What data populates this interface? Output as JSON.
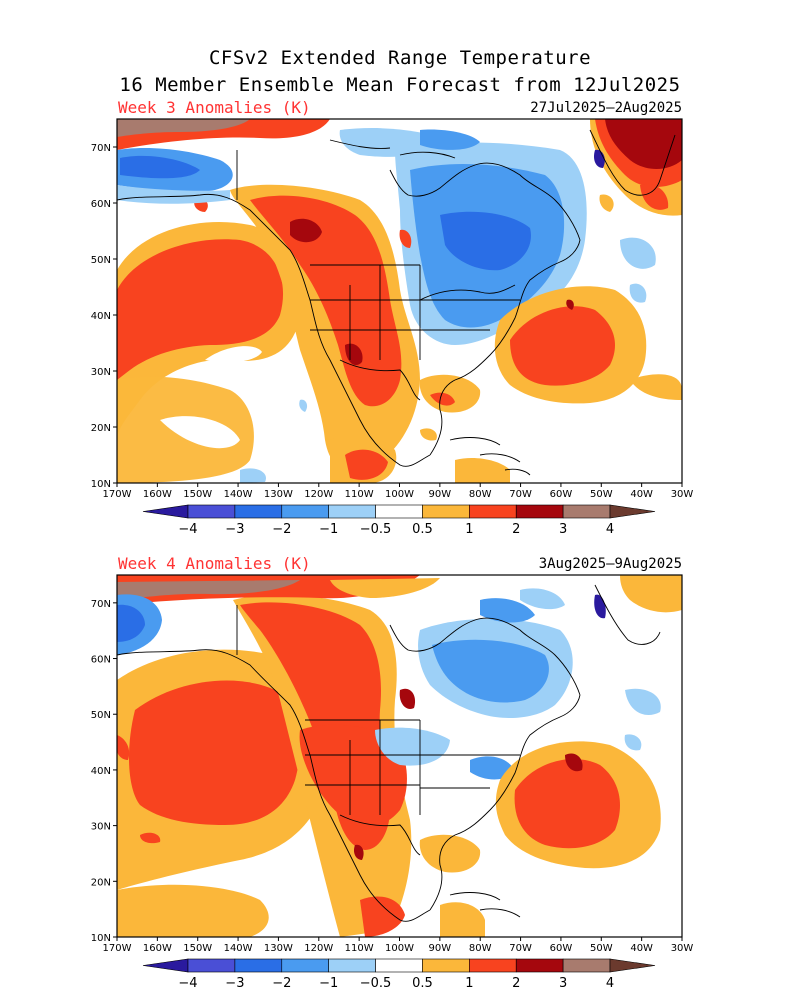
{
  "title_line1": "CFSv2 Extended Range Temperature",
  "title_line2": "16 Member Ensemble Mean Forecast from 12Jul2025",
  "panels": [
    {
      "label": "Week 3 Anomalies (K)",
      "dates": "27Jul2025–2Aug2025"
    },
    {
      "label": "Week 4 Anomalies (K)",
      "dates": "3Aug2025–9Aug2025"
    }
  ],
  "lat_labels": [
    "70N",
    "60N",
    "50N",
    "40N",
    "30N",
    "20N",
    "10N"
  ],
  "lon_labels": [
    "170W",
    "160W",
    "150W",
    "140W",
    "130W",
    "120W",
    "110W",
    "100W",
    "90W",
    "80W",
    "70W",
    "60W",
    "50W",
    "40W",
    "30W"
  ],
  "colorbar": {
    "labels": [
      "−4",
      "−3",
      "−2",
      "−1",
      "−0.5",
      "0.5",
      "1",
      "2",
      "3",
      "4"
    ],
    "colors": [
      "#2a1a9e",
      "#4a4fd6",
      "#2a6ee6",
      "#4a9bf0",
      "#9dd0f7",
      "#ffffff",
      "#fbb73a",
      "#f8431f",
      "#a5070d",
      "#a87b6e",
      "#6b3a2e"
    ]
  }
}
